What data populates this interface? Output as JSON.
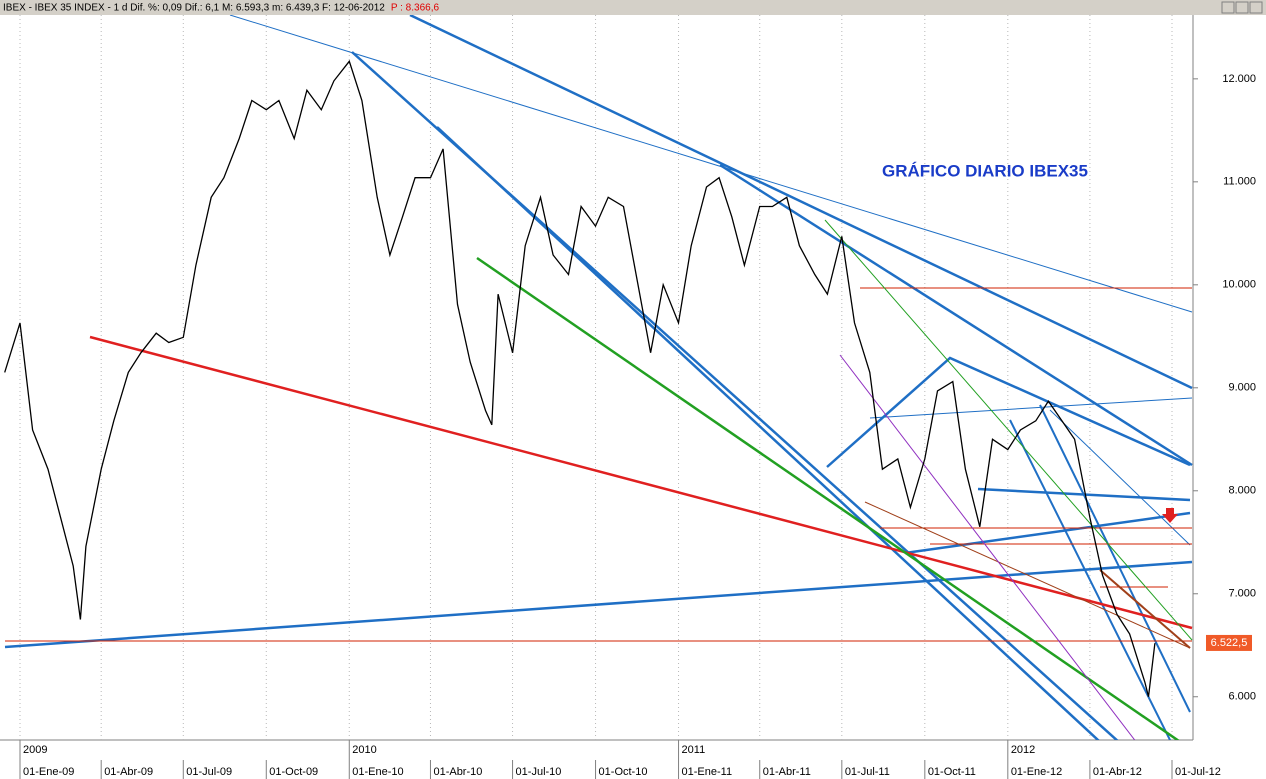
{
  "chart_data": {
    "type": "line",
    "title": "IBEX - IBEX 35 INDEX - 1 d Dif. %: 0,09 Dif.: 6,1 M: 6.593,3 m: 6.439,3 F: 12-06-2012",
    "subtitle": "P : 8.366,6",
    "annotation": "GRÁFICO DIARIO IBEX35",
    "x": [
      "15-Dic-08",
      "01-Ene-09",
      "15-Ene-09",
      "01-Feb-09",
      "15-Feb-09",
      "01-Mar-09",
      "09-Mar-09",
      "15-Mar-09",
      "01-Abr-09",
      "15-Abr-09",
      "01-May-09",
      "15-May-09",
      "01-Jun-09",
      "15-Jun-09",
      "01-Jul-09",
      "15-Jul-09",
      "01-Ago-09",
      "15-Ago-09",
      "01-Sep-09",
      "15-Sep-09",
      "01-Oct-09",
      "15-Oct-09",
      "01-Nov-09",
      "15-Nov-09",
      "01-Dic-09",
      "15-Dic-09",
      "01-Ene-10",
      "15-Ene-10",
      "01-Feb-10",
      "15-Feb-10",
      "01-Mar-10",
      "15-Mar-10",
      "01-Abr-10",
      "15-Abr-10",
      "01-May-10",
      "15-May-10",
      "01-Jun-10",
      "08-Jun-10",
      "15-Jun-10",
      "01-Jul-10",
      "15-Jul-10",
      "01-Ago-10",
      "15-Ago-10",
      "01-Sep-10",
      "15-Sep-10",
      "01-Oct-10",
      "15-Oct-10",
      "01-Nov-10",
      "15-Nov-10",
      "01-Dic-10",
      "15-Dic-10",
      "01-Ene-11",
      "15-Ene-11",
      "01-Feb-11",
      "15-Feb-11",
      "01-Mar-11",
      "15-Mar-11",
      "01-Abr-11",
      "15-Abr-11",
      "01-May-11",
      "15-May-11",
      "01-Jun-11",
      "15-Jun-11",
      "01-Jul-11",
      "15-Jul-11",
      "01-Ago-11",
      "15-Ago-11",
      "01-Sep-11",
      "15-Sep-11",
      "01-Oct-11",
      "15-Oct-11",
      "01-Nov-11",
      "15-Nov-11",
      "01-Dic-11",
      "15-Dic-11",
      "01-Ene-12",
      "15-Ene-12",
      "01-Feb-12",
      "15-Feb-12",
      "01-Mar-12",
      "15-Mar-12",
      "01-Abr-12",
      "15-Abr-12",
      "01-May-12",
      "15-May-12",
      "01-Jun-12",
      "05-Jun-12",
      "12-Jun-12"
    ],
    "series": [
      {
        "color": "#000000",
        "values": [
          9150,
          9630,
          8590,
          8210,
          7740,
          7270,
          6750,
          7460,
          8210,
          8680,
          9150,
          9340,
          9530,
          9440,
          9490,
          10190,
          10850,
          11040,
          11420,
          11790,
          11700,
          11790,
          11420,
          11890,
          11700,
          11980,
          12170,
          11790,
          10850,
          10290,
          10660,
          11040,
          11040,
          11320,
          9810,
          9250,
          8780,
          8640,
          9910,
          9340,
          10380,
          10850,
          10290,
          10100,
          10760,
          10570,
          10850,
          10760,
          10100,
          9340,
          10000,
          9630,
          10380,
          10950,
          11040,
          10660,
          10190,
          10760,
          10760,
          10850,
          10380,
          10100,
          9910,
          10470,
          9630,
          9150,
          8210,
          8310,
          7840,
          8310,
          8970,
          9060,
          8210,
          7650,
          8500,
          8400,
          8590,
          8680,
          8870,
          8680,
          8500,
          7740,
          7180,
          6800,
          6610,
          6140,
          6000,
          6520
        ]
      }
    ],
    "last_value": {
      "value": 6522.5,
      "label": "6.522,5"
    },
    "ylim": [
      5580,
      12620
    ],
    "yticks": [
      {
        "value": 6000,
        "label": "6.000"
      },
      {
        "value": 7000,
        "label": "7.000"
      },
      {
        "value": 8000,
        "label": "8.000"
      },
      {
        "value": 9000,
        "label": "9.000"
      },
      {
        "value": 10000,
        "label": "10.000"
      },
      {
        "value": 11000,
        "label": "11.000"
      },
      {
        "value": 12000,
        "label": "12.000"
      }
    ],
    "xticks": [
      "01-Ene-09",
      "01-Abr-09",
      "01-Jul-09",
      "01-Oct-09",
      "01-Ene-10",
      "01-Abr-10",
      "01-Jul-10",
      "01-Oct-10",
      "01-Ene-11",
      "01-Abr-11",
      "01-Jul-11",
      "01-Oct-11",
      "01-Ene-12",
      "01-Abr-12",
      "01-Jul-12"
    ],
    "year_ticks": [
      {
        "value": "01-Ene-09",
        "label": "2009"
      },
      {
        "value": "01-Ene-10",
        "label": "2010"
      },
      {
        "value": "01-Ene-11",
        "label": "2011"
      },
      {
        "value": "01-Ene-12",
        "label": "2012"
      }
    ]
  }
}
